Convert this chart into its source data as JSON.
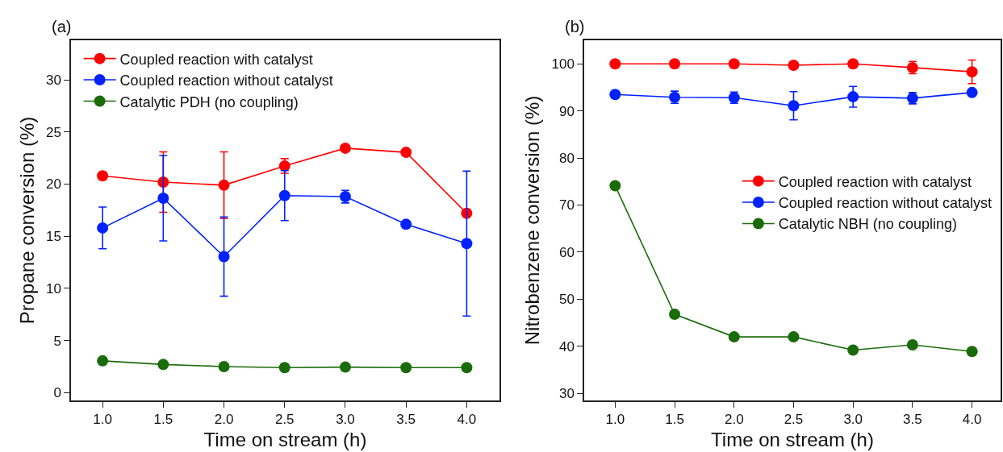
{
  "chart_data": [
    {
      "type": "line",
      "title": "(a)",
      "xlabel": "Time on stream (h)",
      "ylabel": "Propane conversion (%)",
      "x": [
        1,
        1.5,
        2,
        2.5,
        3,
        3.5,
        4
      ],
      "xlim": [
        0.74,
        4.27
      ],
      "xticks": [
        {
          "value": 1,
          "label": "1.0"
        },
        {
          "value": 1.5,
          "label": "1.5"
        },
        {
          "value": 2,
          "label": "2.0"
        },
        {
          "value": 2.5,
          "label": "2.5"
        },
        {
          "value": 3,
          "label": "3.0"
        },
        {
          "value": 3.5,
          "label": "3.5"
        },
        {
          "value": 4,
          "label": "4.0"
        }
      ],
      "ylim": [
        -0.75,
        33.8
      ],
      "yticks": [
        0,
        5,
        10,
        15,
        20,
        25,
        30
      ],
      "grid": false,
      "legend": "top left",
      "marker": "circle",
      "line_style": "solid",
      "series": [
        {
          "name": "Coupled reaction with catalyst",
          "color": "#ff0000",
          "values": [
            20.8,
            20.2,
            19.9,
            21.75,
            23.45,
            23.05,
            17.2
          ],
          "errors": [
            null,
            2.9,
            3.2,
            0.7,
            null,
            null,
            null
          ]
        },
        {
          "name": "Coupled reaction without catalyst",
          "color": "#0022ff",
          "values": [
            15.8,
            18.65,
            13.05,
            18.9,
            18.8,
            16.15,
            14.3
          ],
          "errors": [
            2,
            4.1,
            3.8,
            2.4,
            0.6,
            null,
            6.95
          ]
        },
        {
          "name": "Catalytic PDH (no coupling)",
          "color": "#1a6b0a",
          "values": [
            3.05,
            2.7,
            2.5,
            2.4,
            2.45,
            2.4,
            2.4
          ]
        }
      ]
    },
    {
      "type": "line",
      "title": "(b)",
      "xlabel": "Time on stream (h)",
      "ylabel": "Nitrobenzene conversion (%)",
      "x": [
        1,
        1.5,
        2,
        2.5,
        3,
        3.5,
        4
      ],
      "xlim": [
        0.74,
        4.24
      ],
      "xticks": [
        {
          "value": 1,
          "label": "1.0"
        },
        {
          "value": 1.5,
          "label": "1.5"
        },
        {
          "value": 2,
          "label": "2.0"
        },
        {
          "value": 2.5,
          "label": "2.5"
        },
        {
          "value": 3,
          "label": "3.0"
        },
        {
          "value": 3.5,
          "label": "3.5"
        },
        {
          "value": 4,
          "label": "4.0"
        }
      ],
      "ylim": [
        28.5,
        105
      ],
      "yticks": [
        30,
        40,
        50,
        60,
        70,
        80,
        90,
        100
      ],
      "grid": false,
      "legend": "right",
      "marker": "circle",
      "line_style": "solid",
      "series": [
        {
          "name": "Coupled reaction with catalyst",
          "color": "#ff0000",
          "values": [
            100,
            100,
            100,
            99.7,
            100,
            99.2,
            98.3
          ],
          "errors": [
            null,
            null,
            null,
            null,
            null,
            1.3,
            2.5
          ]
        },
        {
          "name": "Coupled reaction without catalyst",
          "color": "#0022ff",
          "values": [
            93.5,
            92.9,
            92.8,
            91.1,
            93,
            92.7,
            93.9
          ],
          "errors": [
            null,
            1.3,
            1.2,
            3,
            2.2,
            1.2,
            null
          ]
        },
        {
          "name": "Catalytic NBH (no coupling)",
          "color": "#1a6b0a",
          "values": [
            74.1,
            46.8,
            42,
            42,
            39.2,
            40.3,
            38.9
          ]
        }
      ]
    }
  ]
}
